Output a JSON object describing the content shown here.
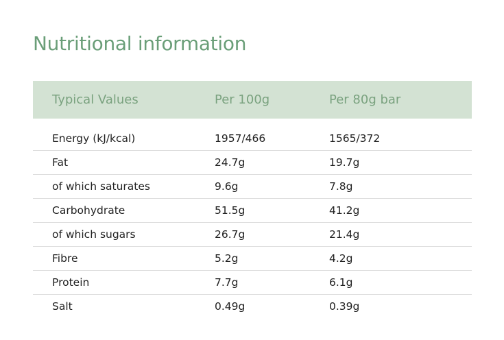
{
  "title": "Nutritional information",
  "headers": [
    "Typical Values",
    "Per 100g",
    "Per 80g bar"
  ],
  "rows": [
    [
      "Energy (kJ/kcal)",
      "1957/466",
      "1565/372"
    ],
    [
      "Fat",
      "24.7g",
      "19.7g"
    ],
    [
      "of which saturates",
      "9.6g",
      "7.8g"
    ],
    [
      "Carbohydrate",
      "51.5g",
      "41.2g"
    ],
    [
      "of which sugars",
      "26.7g",
      "21.4g"
    ],
    [
      "Fibre",
      "5.2g",
      "4.2g"
    ],
    [
      "Protein",
      "7.7g",
      "6.1g"
    ],
    [
      "Salt",
      "0.49g",
      "0.39g"
    ]
  ],
  "colors": {
    "title": "#6a9e78",
    "header_bg": "#d3e2d3",
    "header_text": "#7aa27f"
  }
}
